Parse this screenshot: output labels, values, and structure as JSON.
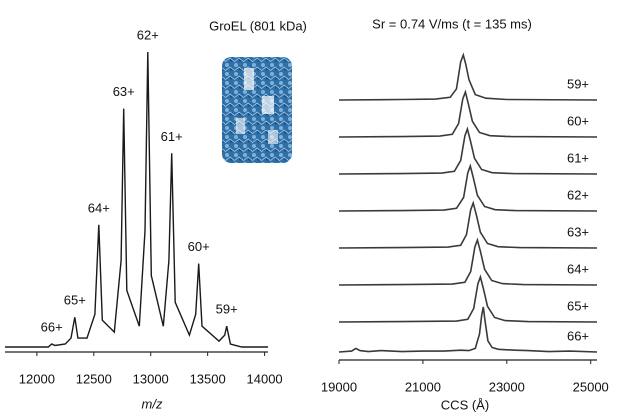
{
  "chart_data": [
    {
      "type": "line",
      "subtitle": "GroEL (801 kDa)",
      "x_label": "m/z",
      "xlim": [
        11720,
        14030
      ],
      "ylim": [
        0,
        100
      ],
      "xticks": [
        12000,
        12500,
        13000,
        13500,
        14000
      ],
      "color": "#1a1a1a",
      "x": [
        11720,
        11900,
        12000,
        12100,
        12130,
        12160,
        12250,
        12300,
        12333,
        12360,
        12440,
        12510,
        12544,
        12575,
        12680,
        12740,
        12763,
        12790,
        12900,
        12950,
        12974,
        13005,
        13110,
        13160,
        13184,
        13215,
        13340,
        13395,
        13421,
        13450,
        13600,
        13650,
        13667,
        13700,
        13800,
        14000,
        14030
      ],
      "values": [
        1,
        1,
        1,
        1,
        2,
        1.5,
        2,
        4,
        11,
        4,
        4,
        12,
        42,
        10,
        6,
        30,
        81,
        20,
        8,
        40,
        100,
        25,
        8,
        30,
        66,
        16,
        5,
        12,
        29,
        8,
        3,
        5,
        8,
        2,
        1,
        1,
        1
      ],
      "annotations": [
        {
          "text": "66+",
          "x": 12130,
          "y": 2
        },
        {
          "text": "65+",
          "x": 12333,
          "y": 11
        },
        {
          "text": "64+",
          "x": 12544,
          "y": 42
        },
        {
          "text": "63+",
          "x": 12763,
          "y": 81
        },
        {
          "text": "62+",
          "x": 12974,
          "y": 100
        },
        {
          "text": "61+",
          "x": 13184,
          "y": 66
        },
        {
          "text": "60+",
          "x": 13421,
          "y": 29
        },
        {
          "text": "59+",
          "x": 13667,
          "y": 8
        }
      ]
    },
    {
      "type": "line",
      "title": "Sr = 0.74 V/ms (t = 135 ms)",
      "x_label": "CCS (Å)",
      "xlim": [
        19000,
        25150
      ],
      "ylim": [
        0,
        100
      ],
      "xticks": [
        19000,
        21000,
        23000,
        25000
      ],
      "series": [
        {
          "name": "59+",
          "color": "#3a3a3a",
          "x": [
            19000,
            20500,
            21300,
            21650,
            21800,
            21900,
            21964,
            22020,
            22100,
            22250,
            22500,
            23000,
            25150
          ],
          "values": [
            0,
            1,
            2,
            6,
            25,
            85,
            100,
            80,
            45,
            12,
            4,
            1,
            0
          ]
        },
        {
          "name": "60+",
          "color": "#3a3a3a",
          "x": [
            19000,
            20500,
            21400,
            21700,
            21850,
            21950,
            22012,
            22080,
            22180,
            22350,
            22600,
            23100,
            25150
          ],
          "values": [
            0,
            1,
            2,
            6,
            30,
            85,
            100,
            75,
            35,
            10,
            3,
            1,
            0
          ]
        },
        {
          "name": "61+",
          "color": "#3a3a3a",
          "x": [
            19000,
            20500,
            21450,
            21750,
            21900,
            22000,
            22060,
            22130,
            22230,
            22400,
            22650,
            23150,
            25150
          ],
          "values": [
            0,
            1,
            2,
            6,
            30,
            85,
            100,
            75,
            35,
            10,
            3,
            1,
            0
          ]
        },
        {
          "name": "62+",
          "color": "#3a3a3a",
          "x": [
            19000,
            20500,
            21500,
            21800,
            21970,
            22070,
            22130,
            22200,
            22300,
            22470,
            22720,
            23200,
            25150
          ],
          "values": [
            0,
            1,
            2,
            6,
            30,
            85,
            100,
            75,
            35,
            10,
            3,
            1,
            0
          ]
        },
        {
          "name": "63+",
          "color": "#3a3a3a",
          "x": [
            19000,
            20500,
            21600,
            21900,
            22040,
            22140,
            22200,
            22270,
            22370,
            22540,
            22790,
            23300,
            25150
          ],
          "values": [
            0,
            1,
            2,
            6,
            30,
            85,
            100,
            75,
            35,
            10,
            3,
            1,
            0
          ]
        },
        {
          "name": "64+",
          "color": "#3a3a3a",
          "x": [
            19000,
            20500,
            21700,
            22000,
            22140,
            22240,
            22300,
            22370,
            22470,
            22640,
            22890,
            23400,
            25150
          ],
          "values": [
            0,
            1,
            2,
            6,
            30,
            85,
            100,
            75,
            35,
            10,
            3,
            1,
            0
          ]
        },
        {
          "name": "65+",
          "color": "#3a3a3a",
          "x": [
            19000,
            20500,
            21800,
            22070,
            22210,
            22310,
            22370,
            22440,
            22540,
            22710,
            22960,
            23500,
            25150
          ],
          "values": [
            0,
            1,
            2,
            6,
            30,
            85,
            100,
            75,
            35,
            10,
            3,
            1,
            0
          ]
        },
        {
          "name": "66+",
          "color": "#3a3a3a",
          "x": [
            19000,
            19300,
            19400,
            19500,
            19700,
            20000,
            20500,
            21000,
            21500,
            21900,
            22100,
            22250,
            22350,
            22400,
            22440,
            22480,
            22550,
            22650,
            22800,
            23000,
            23200,
            23500,
            24000,
            24500,
            25150
          ],
          "values": [
            0,
            2,
            8,
            3,
            1,
            3,
            1,
            2,
            2,
            4,
            3,
            8,
            40,
            80,
            100,
            70,
            25,
            10,
            6,
            5,
            4,
            3,
            1,
            2,
            0
          ]
        }
      ]
    }
  ]
}
